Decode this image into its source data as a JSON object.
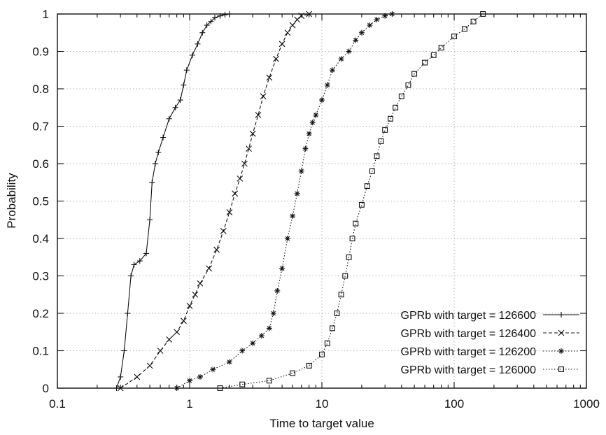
{
  "chart_data": {
    "type": "line",
    "xlabel": "Time to target value",
    "ylabel": "Probability",
    "xscale": "log",
    "xlim": [
      0.1,
      1000
    ],
    "ylim": [
      0,
      1
    ],
    "xticks": [
      0.1,
      1,
      10,
      100,
      1000
    ],
    "xtick_labels": [
      "0.1",
      "1",
      "10",
      "100",
      "1000"
    ],
    "yticks": [
      0,
      0.1,
      0.2,
      0.3,
      0.4,
      0.5,
      0.6,
      0.7,
      0.8,
      0.9,
      1
    ],
    "ytick_labels": [
      "0",
      "0.1",
      "0.2",
      "0.3",
      "0.4",
      "0.5",
      "0.6",
      "0.7",
      "0.8",
      "0.9",
      "1"
    ],
    "grid": true,
    "legend_position": "bottom-right",
    "series": [
      {
        "name": "GPRb with target = 126600",
        "marker": "plus",
        "line_style": "solid",
        "x": [
          0.28,
          0.3,
          0.32,
          0.34,
          0.36,
          0.38,
          0.42,
          0.47,
          0.5,
          0.52,
          0.55,
          0.58,
          0.63,
          0.7,
          0.78,
          0.85,
          0.9,
          0.95,
          1.05,
          1.15,
          1.25,
          1.35,
          1.45,
          1.55,
          1.7,
          1.85,
          2.0
        ],
        "y": [
          0.0,
          0.03,
          0.1,
          0.2,
          0.3,
          0.33,
          0.34,
          0.36,
          0.45,
          0.55,
          0.6,
          0.63,
          0.67,
          0.72,
          0.75,
          0.77,
          0.81,
          0.85,
          0.89,
          0.92,
          0.95,
          0.97,
          0.98,
          0.99,
          0.995,
          0.998,
          1.0
        ]
      },
      {
        "name": "GPRb with target = 126400",
        "marker": "x",
        "line_style": "dashed",
        "x": [
          0.3,
          0.4,
          0.5,
          0.6,
          0.7,
          0.8,
          0.9,
          1.0,
          1.1,
          1.2,
          1.4,
          1.6,
          1.8,
          2.0,
          2.2,
          2.4,
          2.6,
          2.8,
          3.0,
          3.3,
          3.6,
          4.0,
          4.5,
          5.0,
          5.5,
          6.0,
          6.5,
          7.0,
          8.0
        ],
        "y": [
          0.0,
          0.03,
          0.06,
          0.1,
          0.13,
          0.15,
          0.18,
          0.22,
          0.25,
          0.28,
          0.32,
          0.37,
          0.42,
          0.47,
          0.52,
          0.56,
          0.6,
          0.64,
          0.68,
          0.73,
          0.78,
          0.83,
          0.88,
          0.92,
          0.95,
          0.97,
          0.985,
          0.995,
          1.0
        ]
      },
      {
        "name": "GPRb with target = 126200",
        "marker": "asterisk",
        "line_style": "dotted",
        "x": [
          0.8,
          1.0,
          1.2,
          1.5,
          2.0,
          2.5,
          3.0,
          3.5,
          4.0,
          4.3,
          4.6,
          5.0,
          5.5,
          6.0,
          6.5,
          7.0,
          7.5,
          8.0,
          8.5,
          9.0,
          10.0,
          11.0,
          12.0,
          14.0,
          16.0,
          18.0,
          20.0,
          23.0,
          26.0,
          30.0,
          34.0
        ],
        "y": [
          0.0,
          0.02,
          0.03,
          0.05,
          0.07,
          0.1,
          0.12,
          0.14,
          0.16,
          0.2,
          0.26,
          0.32,
          0.4,
          0.46,
          0.52,
          0.58,
          0.64,
          0.68,
          0.71,
          0.73,
          0.77,
          0.81,
          0.85,
          0.88,
          0.9,
          0.93,
          0.95,
          0.97,
          0.985,
          0.995,
          1.0
        ]
      },
      {
        "name": "GPRb with target = 126000",
        "marker": "square",
        "line_style": "dotted",
        "x": [
          1.7,
          2.5,
          4.0,
          6.0,
          8.0,
          10.0,
          11.0,
          12.0,
          13.0,
          14.0,
          15.0,
          16.0,
          17.0,
          18.0,
          20.0,
          22.0,
          24.0,
          26.0,
          28.0,
          30.0,
          33.0,
          36.0,
          40.0,
          45.0,
          50.0,
          60.0,
          70.0,
          80.0,
          100.0,
          120.0,
          140.0,
          165.0
        ],
        "y": [
          0.0,
          0.01,
          0.02,
          0.04,
          0.06,
          0.09,
          0.12,
          0.16,
          0.2,
          0.25,
          0.3,
          0.35,
          0.4,
          0.44,
          0.49,
          0.54,
          0.58,
          0.62,
          0.66,
          0.69,
          0.72,
          0.75,
          0.78,
          0.81,
          0.84,
          0.87,
          0.89,
          0.91,
          0.94,
          0.96,
          0.98,
          1.0
        ]
      }
    ]
  }
}
